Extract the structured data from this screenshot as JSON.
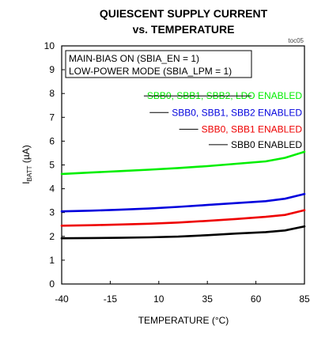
{
  "chart_data": {
    "type": "line",
    "title": [
      "QUIESCENT SUPPLY CURRENT",
      "vs. TEMPERATURE"
    ],
    "figure_tag": "toc05",
    "xlabel": "TEMPERATURE (°C)",
    "ylabel": "IBATT (µA)",
    "ylabel_parts": {
      "main": "I",
      "sub": "BATT",
      "rest": " (µA)"
    },
    "xlim": [
      -40,
      85
    ],
    "ylim": [
      0,
      10
    ],
    "x_ticks": [
      -40,
      -15,
      10,
      35,
      60,
      85
    ],
    "y_ticks": [
      0,
      1,
      2,
      3,
      4,
      5,
      6,
      7,
      8,
      9,
      10
    ],
    "grid": false,
    "conditions": [
      "MAIN-BIAS ON (SBIA_EN = 1)",
      "LOW-POWER MODE (SBIA_LPM = 1)"
    ],
    "series": [
      {
        "name": "SBB0, SBB1, SBB2, LDO ENABLED",
        "color": "#00ee00",
        "x": [
          -40,
          -25,
          -10,
          5,
          20,
          35,
          50,
          65,
          75,
          85
        ],
        "y": [
          4.62,
          4.68,
          4.74,
          4.8,
          4.87,
          4.95,
          5.05,
          5.15,
          5.3,
          5.55
        ]
      },
      {
        "name": "SBB0, SBB1, SBB2 ENABLED",
        "color": "#0000dd",
        "x": [
          -40,
          -25,
          -10,
          5,
          20,
          35,
          50,
          65,
          75,
          85
        ],
        "y": [
          3.05,
          3.08,
          3.12,
          3.17,
          3.24,
          3.32,
          3.4,
          3.48,
          3.58,
          3.78
        ]
      },
      {
        "name": "SBB0, SBB1 ENABLED",
        "color": "#ee0000",
        "x": [
          -40,
          -25,
          -10,
          5,
          20,
          35,
          50,
          65,
          75,
          85
        ],
        "y": [
          2.45,
          2.47,
          2.5,
          2.53,
          2.58,
          2.65,
          2.73,
          2.82,
          2.9,
          3.1
        ]
      },
      {
        "name": "SBB0 ENABLED",
        "color": "#000000",
        "x": [
          -40,
          -25,
          -10,
          5,
          20,
          35,
          50,
          65,
          75,
          85
        ],
        "y": [
          1.92,
          1.93,
          1.94,
          1.96,
          1.99,
          2.05,
          2.12,
          2.18,
          2.25,
          2.42
        ]
      }
    ]
  }
}
